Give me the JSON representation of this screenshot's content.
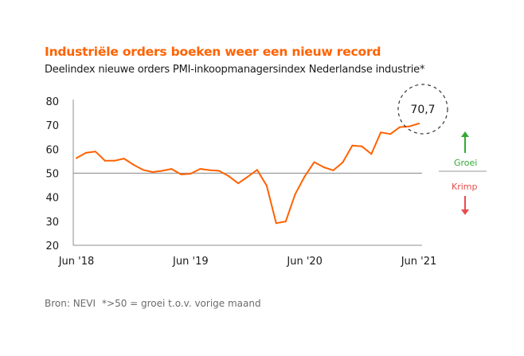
{
  "header": {
    "title": "Industriële orders boeken weer een nieuw record",
    "subtitle": "Deelindex nieuwe orders PMI-inkoopmanagersindex Nederlandse industrie*"
  },
  "footer": {
    "source": "Bron: NEVI",
    "note": "*>50 = groei t.o.v. vorige maand"
  },
  "colors": {
    "line": "#ff6200",
    "title": "#ff6200",
    "growth": "#33aa33",
    "shrink": "#e84c4c",
    "axis": "#8c8c8c",
    "reference": "#999999",
    "text": "#1a1a1a",
    "muted": "#6b6b6b"
  },
  "chart_data": {
    "type": "line",
    "title": "Industriële orders boeken weer een nieuw record",
    "subtitle": "Deelindex nieuwe orders PMI-inkoopmanagersindex Nederlandse industrie*",
    "xlabel": "",
    "ylabel": "",
    "ylim": [
      20,
      80
    ],
    "yticks": [
      20,
      30,
      40,
      50,
      60,
      70,
      80
    ],
    "xtick_labels": [
      "Jun '18",
      "Jun '19",
      "Jun '20",
      "Jun '21"
    ],
    "reference_line": 50,
    "grid": false,
    "x": [
      "2018-06",
      "2018-07",
      "2018-08",
      "2018-09",
      "2018-10",
      "2018-11",
      "2018-12",
      "2019-01",
      "2019-02",
      "2019-03",
      "2019-04",
      "2019-05",
      "2019-06",
      "2019-07",
      "2019-08",
      "2019-09",
      "2019-10",
      "2019-11",
      "2019-12",
      "2020-01",
      "2020-02",
      "2020-03",
      "2020-04",
      "2020-05",
      "2020-06",
      "2020-07",
      "2020-08",
      "2020-09",
      "2020-10",
      "2020-11",
      "2020-12",
      "2021-01",
      "2021-02",
      "2021-03",
      "2021-04",
      "2021-05",
      "2021-06"
    ],
    "series": [
      {
        "values": [
          56.3,
          58.5,
          59.0,
          55.2,
          55.2,
          56.1,
          53.5,
          51.4,
          50.5,
          51.0,
          51.8,
          49.5,
          49.8,
          51.8,
          51.3,
          51.0,
          48.8,
          45.8,
          48.5,
          51.4,
          44.8,
          29.2,
          29.9,
          41.3,
          48.7,
          54.6,
          52.5,
          51.2,
          54.5,
          61.5,
          61.2,
          58.0,
          67.0,
          66.3,
          69.2,
          69.5,
          70.7
        ]
      }
    ],
    "annotations": [
      {
        "text": "70,7",
        "x": "2021-06",
        "y": 70.7
      }
    ],
    "legend_labels": {
      "growth": "Groei",
      "shrink": "Krimp"
    }
  }
}
